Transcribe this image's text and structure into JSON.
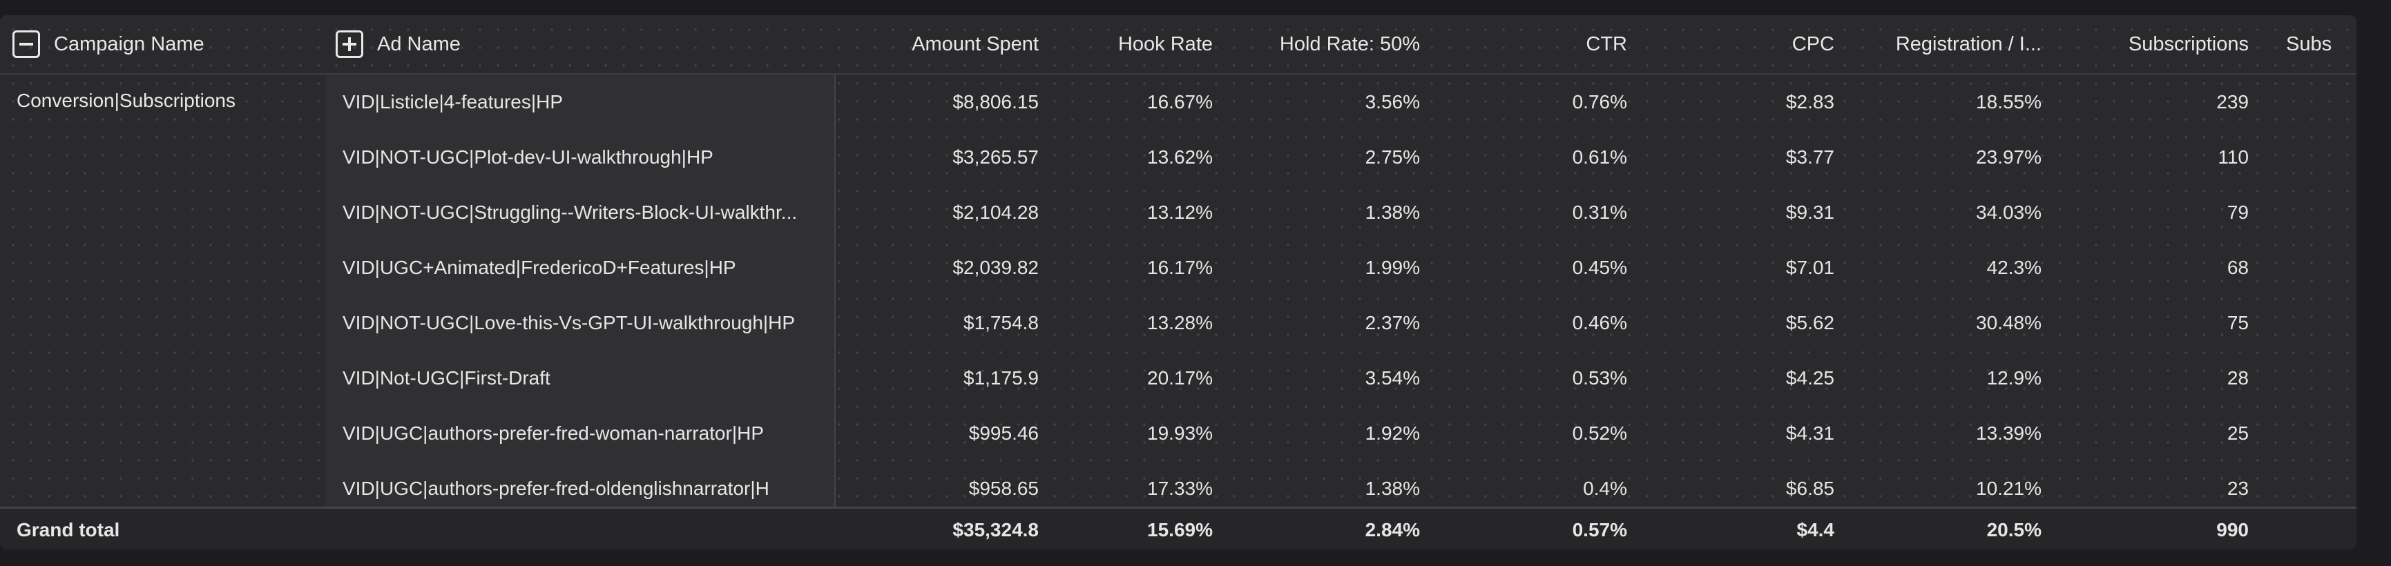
{
  "header": {
    "campaign_col": "Campaign Name",
    "ad_col": "Ad Name",
    "columns": [
      "Amount Spent",
      "Hook Rate",
      "Hold Rate: 50%",
      "CTR",
      "CPC",
      "Registration / I...",
      "Subscriptions",
      "Subs"
    ]
  },
  "campaign": "Conversion|Subscriptions",
  "rows": [
    {
      "ad": "VID|Listicle|4-features|HP",
      "spent": "$8,806.15",
      "hook": "16.67%",
      "hold": "3.56%",
      "ctr": "0.76%",
      "cpc": "$2.83",
      "reg": "18.55%",
      "subs": "239"
    },
    {
      "ad": "VID|NOT-UGC|Plot-dev-UI-walkthrough|HP",
      "spent": "$3,265.57",
      "hook": "13.62%",
      "hold": "2.75%",
      "ctr": "0.61%",
      "cpc": "$3.77",
      "reg": "23.97%",
      "subs": "110"
    },
    {
      "ad": "VID|NOT-UGC|Struggling--Writers-Block-UI-walkthr...",
      "spent": "$2,104.28",
      "hook": "13.12%",
      "hold": "1.38%",
      "ctr": "0.31%",
      "cpc": "$9.31",
      "reg": "34.03%",
      "subs": "79"
    },
    {
      "ad": "VID|UGC+Animated|FredericoD+Features|HP",
      "spent": "$2,039.82",
      "hook": "16.17%",
      "hold": "1.99%",
      "ctr": "0.45%",
      "cpc": "$7.01",
      "reg": "42.3%",
      "subs": "68"
    },
    {
      "ad": "VID|NOT-UGC|Love-this-Vs-GPT-UI-walkthrough|HP",
      "spent": "$1,754.8",
      "hook": "13.28%",
      "hold": "2.37%",
      "ctr": "0.46%",
      "cpc": "$5.62",
      "reg": "30.48%",
      "subs": "75"
    },
    {
      "ad": "VID|Not-UGC|First-Draft",
      "spent": "$1,175.9",
      "hook": "20.17%",
      "hold": "3.54%",
      "ctr": "0.53%",
      "cpc": "$4.25",
      "reg": "12.9%",
      "subs": "28"
    },
    {
      "ad": "VID|UGC|authors-prefer-fred-woman-narrator|HP",
      "spent": "$995.46",
      "hook": "19.93%",
      "hold": "1.92%",
      "ctr": "0.52%",
      "cpc": "$4.31",
      "reg": "13.39%",
      "subs": "25"
    },
    {
      "ad": "VID|UGC|authors-prefer-fred-oldenglishnarrator|H",
      "spent": "$958.65",
      "hook": "17.33%",
      "hold": "1.38%",
      "ctr": "0.4%",
      "cpc": "$6.85",
      "reg": "10.21%",
      "subs": "23"
    }
  ],
  "total": {
    "label": "Grand total",
    "spent": "$35,324.8",
    "hook": "15.69%",
    "hold": "2.84%",
    "ctr": "0.57%",
    "cpc": "$4.4",
    "reg": "20.5%",
    "subs": "990"
  }
}
